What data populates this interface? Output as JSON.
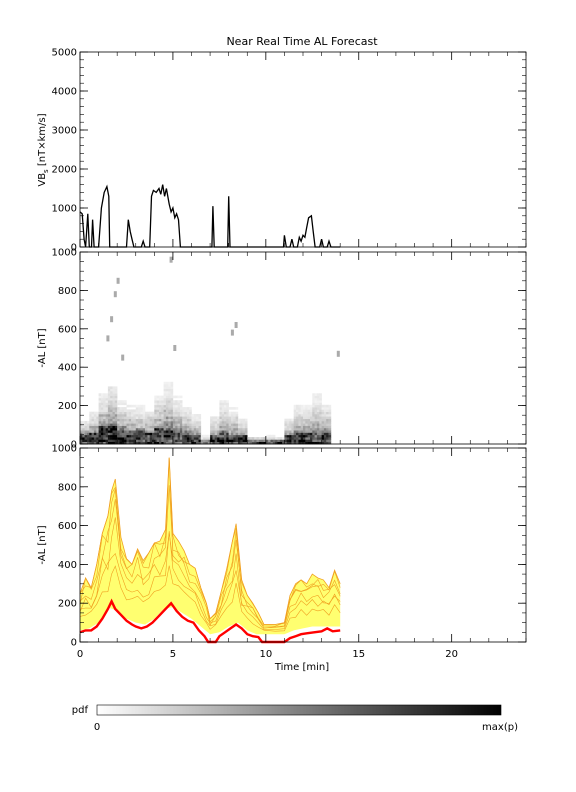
{
  "title": "Near Real Time AL Forecast",
  "colors": {
    "axes": "#000000",
    "envelope_line": "#f0a020",
    "envelope_fill": "#ffff40",
    "median": "#ff0000",
    "vbs_line": "#000000"
  },
  "chart_data": [
    {
      "type": "line",
      "panel": "vbs",
      "title": "",
      "ylabel": "VB_s [nT×km/s]",
      "ylabel_main": "VB",
      "ylabel_sub": "s",
      "ylabel_unit": " [nT×km/s]",
      "xlim": [
        0,
        24
      ],
      "ylim": [
        0,
        5000
      ],
      "yticks": [
        "0",
        "1000",
        "2000",
        "3000",
        "4000",
        "5000"
      ],
      "series": [
        {
          "values": [
            [
              0.0,
              900
            ],
            [
              0.12,
              850
            ],
            [
              0.22,
              200
            ],
            [
              0.3,
              0
            ],
            [
              0.42,
              850
            ],
            [
              0.5,
              0
            ],
            [
              0.62,
              0
            ],
            [
              0.68,
              700
            ],
            [
              0.76,
              0
            ],
            [
              1.0,
              0
            ],
            [
              1.15,
              1000
            ],
            [
              1.3,
              1400
            ],
            [
              1.45,
              1550
            ],
            [
              1.55,
              1300
            ],
            [
              1.6,
              0
            ],
            [
              2.5,
              0
            ],
            [
              2.6,
              700
            ],
            [
              2.7,
              400
            ],
            [
              2.8,
              200
            ],
            [
              2.9,
              0
            ],
            [
              3.3,
              0
            ],
            [
              3.4,
              150
            ],
            [
              3.5,
              0
            ],
            [
              3.75,
              0
            ],
            [
              3.85,
              1300
            ],
            [
              3.95,
              1450
            ],
            [
              4.1,
              1400
            ],
            [
              4.25,
              1500
            ],
            [
              4.35,
              1350
            ],
            [
              4.45,
              1600
            ],
            [
              4.55,
              1300
            ],
            [
              4.65,
              1500
            ],
            [
              4.8,
              1100
            ],
            [
              4.9,
              900
            ],
            [
              5.0,
              1000
            ],
            [
              5.1,
              750
            ],
            [
              5.2,
              850
            ],
            [
              5.3,
              700
            ],
            [
              5.4,
              0
            ],
            [
              7.1,
              0
            ],
            [
              7.15,
              1050
            ],
            [
              7.22,
              0
            ],
            [
              7.95,
              0
            ],
            [
              8.0,
              1300
            ],
            [
              8.07,
              0
            ],
            [
              10.95,
              0
            ],
            [
              11.0,
              300
            ],
            [
              11.1,
              0
            ],
            [
              11.3,
              0
            ],
            [
              11.4,
              200
            ],
            [
              11.5,
              0
            ],
            [
              11.7,
              0
            ],
            [
              11.8,
              250
            ],
            [
              11.9,
              150
            ],
            [
              12.0,
              300
            ],
            [
              12.1,
              250
            ],
            [
              12.2,
              500
            ],
            [
              12.3,
              750
            ],
            [
              12.45,
              800
            ],
            [
              12.55,
              400
            ],
            [
              12.65,
              0
            ],
            [
              12.9,
              0
            ],
            [
              13.0,
              200
            ],
            [
              13.1,
              0
            ],
            [
              13.3,
              0
            ],
            [
              13.4,
              150
            ],
            [
              13.5,
              0
            ],
            [
              14.0,
              0
            ]
          ]
        }
      ]
    },
    {
      "type": "heatmap",
      "panel": "pdf",
      "title": "",
      "ylabel": "-AL [nT]",
      "xlim": [
        0,
        24
      ],
      "ylim": [
        0,
        1000
      ],
      "yticks": [
        "0",
        "200",
        "400",
        "600",
        "800",
        "1000"
      ],
      "data_extent_min": [
        0,
        14
      ],
      "colorbar": {
        "label": "pdf",
        "min_label": "0",
        "max_label": "max(p)"
      },
      "x": [
        0.5,
        1.0,
        1.5,
        2.0,
        2.5,
        3.0,
        3.5,
        4.0,
        4.5,
        5.0,
        5.5,
        6.0,
        6.5,
        7.0,
        7.5,
        8.0,
        8.5,
        9.0,
        9.5,
        10.0,
        10.5,
        11.0,
        11.5,
        12.0,
        12.5,
        13.0,
        13.5
      ],
      "mode_AL": [
        30,
        40,
        70,
        80,
        60,
        50,
        50,
        40,
        60,
        70,
        50,
        40,
        30,
        5,
        30,
        50,
        30,
        25,
        5,
        5,
        5,
        5,
        30,
        40,
        40,
        50,
        40
      ],
      "spread": [
        120,
        160,
        260,
        300,
        200,
        180,
        170,
        180,
        260,
        300,
        240,
        180,
        140,
        40,
        140,
        210,
        200,
        140,
        40,
        40,
        40,
        40,
        140,
        200,
        220,
        240,
        220
      ],
      "outliers": [
        [
          1.5,
          550
        ],
        [
          1.7,
          650
        ],
        [
          1.9,
          780
        ],
        [
          2.05,
          850
        ],
        [
          2.3,
          450
        ],
        [
          4.9,
          960
        ],
        [
          5.1,
          500
        ],
        [
          8.4,
          620
        ],
        [
          8.2,
          580
        ],
        [
          13.9,
          470
        ]
      ]
    },
    {
      "type": "area",
      "panel": "forecast",
      "title": "",
      "xlabel": "Time [min]",
      "ylabel": "-AL [nT]",
      "xlim": [
        0,
        24
      ],
      "ylim": [
        0,
        1000
      ],
      "xticks": [
        "0",
        "5",
        "10",
        "15",
        "20"
      ],
      "yticks": [
        "0",
        "200",
        "400",
        "600",
        "800",
        "1000"
      ],
      "series": [
        {
          "values": [
            [
              0.0,
              50
            ],
            [
              0.3,
              60
            ],
            [
              0.6,
              60
            ],
            [
              0.9,
              80
            ],
            [
              1.2,
              120
            ],
            [
              1.5,
              170
            ],
            [
              1.7,
              210
            ],
            [
              1.9,
              170
            ],
            [
              2.2,
              140
            ],
            [
              2.5,
              110
            ],
            [
              2.8,
              90
            ],
            [
              3.0,
              80
            ],
            [
              3.3,
              70
            ],
            [
              3.6,
              80
            ],
            [
              3.9,
              100
            ],
            [
              4.2,
              130
            ],
            [
              4.5,
              160
            ],
            [
              4.9,
              200
            ],
            [
              5.2,
              160
            ],
            [
              5.5,
              130
            ],
            [
              5.8,
              110
            ],
            [
              6.1,
              100
            ],
            [
              6.4,
              60
            ],
            [
              6.7,
              30
            ],
            [
              6.9,
              0
            ],
            [
              7.3,
              0
            ],
            [
              7.5,
              30
            ],
            [
              7.8,
              50
            ],
            [
              8.1,
              70
            ],
            [
              8.4,
              90
            ],
            [
              8.7,
              70
            ],
            [
              9.0,
              40
            ],
            [
              9.3,
              30
            ],
            [
              9.6,
              25
            ],
            [
              9.8,
              0
            ],
            [
              11.0,
              0
            ],
            [
              11.3,
              20
            ],
            [
              11.6,
              30
            ],
            [
              11.9,
              40
            ],
            [
              12.2,
              45
            ],
            [
              12.6,
              50
            ],
            [
              13.0,
              55
            ],
            [
              13.3,
              70
            ],
            [
              13.6,
              55
            ],
            [
              14.0,
              60
            ]
          ]
        }
      ],
      "envelope_high": [
        [
          0.0,
          250
        ],
        [
          0.3,
          330
        ],
        [
          0.6,
          280
        ],
        [
          0.9,
          400
        ],
        [
          1.2,
          560
        ],
        [
          1.5,
          650
        ],
        [
          1.7,
          780
        ],
        [
          1.9,
          840
        ],
        [
          2.2,
          540
        ],
        [
          2.5,
          430
        ],
        [
          2.8,
          400
        ],
        [
          3.1,
          480
        ],
        [
          3.4,
          420
        ],
        [
          3.7,
          460
        ],
        [
          4.0,
          510
        ],
        [
          4.3,
          520
        ],
        [
          4.6,
          580
        ],
        [
          4.8,
          950
        ],
        [
          5.0,
          560
        ],
        [
          5.3,
          520
        ],
        [
          5.6,
          470
        ],
        [
          5.9,
          400
        ],
        [
          6.2,
          380
        ],
        [
          6.5,
          280
        ],
        [
          6.8,
          200
        ],
        [
          7.0,
          120
        ],
        [
          7.3,
          150
        ],
        [
          7.6,
          260
        ],
        [
          7.9,
          380
        ],
        [
          8.2,
          520
        ],
        [
          8.4,
          610
        ],
        [
          8.7,
          320
        ],
        [
          9.0,
          240
        ],
        [
          9.3,
          200
        ],
        [
          9.6,
          150
        ],
        [
          9.9,
          90
        ],
        [
          10.5,
          90
        ],
        [
          11.0,
          100
        ],
        [
          11.3,
          240
        ],
        [
          11.6,
          300
        ],
        [
          11.9,
          320
        ],
        [
          12.2,
          300
        ],
        [
          12.5,
          350
        ],
        [
          12.8,
          330
        ],
        [
          13.1,
          320
        ],
        [
          13.4,
          280
        ],
        [
          13.7,
          370
        ],
        [
          14.0,
          300
        ]
      ],
      "envelope_low": [
        [
          0.0,
          60
        ],
        [
          0.5,
          70
        ],
        [
          1.0,
          100
        ],
        [
          1.5,
          180
        ],
        [
          2.0,
          160
        ],
        [
          2.5,
          120
        ],
        [
          3.0,
          100
        ],
        [
          3.5,
          90
        ],
        [
          4.0,
          120
        ],
        [
          4.5,
          170
        ],
        [
          5.0,
          180
        ],
        [
          5.5,
          150
        ],
        [
          6.0,
          120
        ],
        [
          6.5,
          80
        ],
        [
          7.0,
          40
        ],
        [
          7.5,
          50
        ],
        [
          8.0,
          80
        ],
        [
          8.5,
          100
        ],
        [
          9.0,
          60
        ],
        [
          9.5,
          40
        ],
        [
          10.0,
          40
        ],
        [
          11.0,
          40
        ],
        [
          11.5,
          60
        ],
        [
          12.0,
          70
        ],
        [
          12.5,
          80
        ],
        [
          13.0,
          80
        ],
        [
          13.5,
          80
        ],
        [
          14.0,
          80
        ]
      ]
    }
  ]
}
